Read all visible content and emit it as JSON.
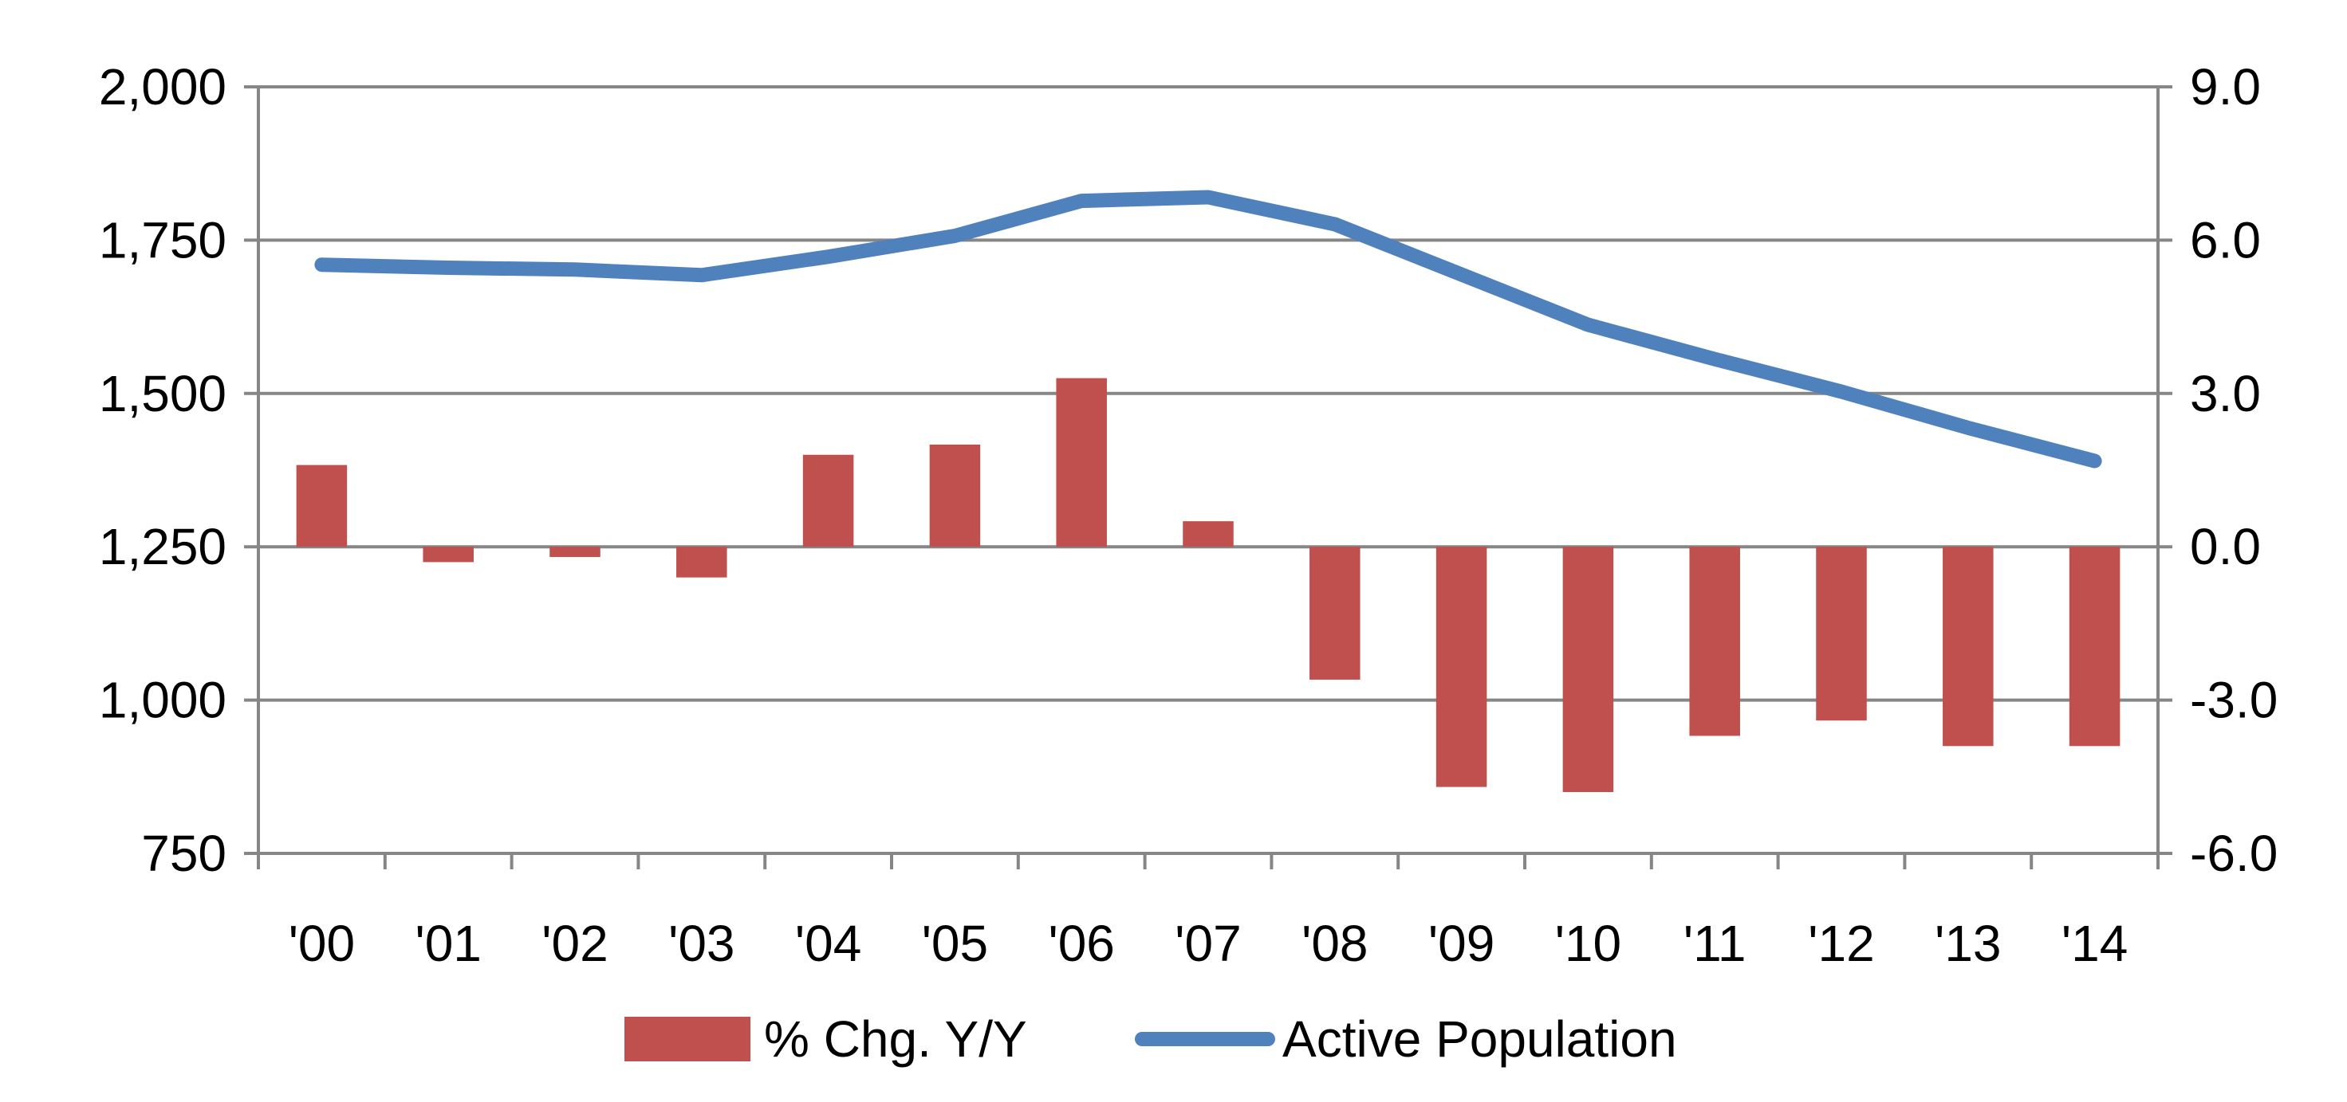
{
  "chart_data": {
    "type": "bar+line",
    "categories": [
      "'00",
      "'01",
      "'02",
      "'03",
      "'04",
      "'05",
      "'06",
      "'07",
      "'08",
      "'09",
      "'10",
      "'11",
      "'12",
      "'13",
      "'14"
    ],
    "series": [
      {
        "name": "% Chg. Y/Y",
        "type": "bar",
        "axis": "right",
        "color": "#C0504D",
        "values": [
          1.6,
          -0.3,
          -0.2,
          -0.6,
          1.8,
          2.0,
          3.3,
          0.5,
          -2.6,
          -4.7,
          -4.8,
          -3.7,
          -3.4,
          -3.9,
          -3.9
        ]
      },
      {
        "name": "Active Population",
        "type": "line",
        "axis": "left",
        "color": "#4F81BD",
        "values": [
          1710,
          1705,
          1702,
          1693,
          1723,
          1757,
          1814,
          1820,
          1776,
          1694,
          1612,
          1556,
          1503,
          1444,
          1390
        ]
      }
    ],
    "left_axis": {
      "min": 750,
      "max": 2000,
      "step": 250,
      "ticks": [
        "750",
        "1,000",
        "1,250",
        "1,500",
        "1,750",
        "2,000"
      ]
    },
    "right_axis": {
      "min": -6.0,
      "max": 9.0,
      "step": 3.0,
      "ticks": [
        "-6.0",
        "-3.0",
        "0.0",
        "3.0",
        "6.0",
        "9.0"
      ]
    },
    "grid": true,
    "legend_position": "bottom"
  }
}
